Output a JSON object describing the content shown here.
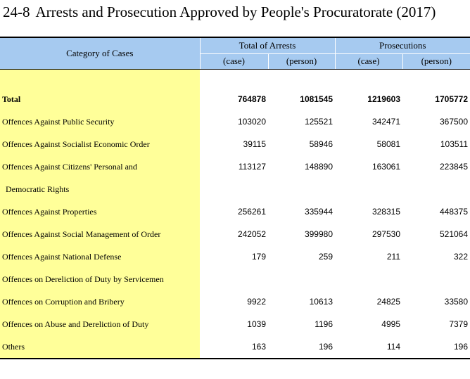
{
  "title": {
    "number": "24-8",
    "text": "Arrests and Prosecution Approved by People's Procuratorate (2017)"
  },
  "header": {
    "category": "Category of Cases",
    "groups": [
      "Total of Arrests",
      "Prosecutions"
    ],
    "units": [
      "(case)",
      "(person)",
      "(case)",
      "(person)"
    ]
  },
  "rows": [
    {
      "label": "Total",
      "values": [
        "764878",
        "1081545",
        "1219603",
        "1705772"
      ]
    },
    {
      "label": "Offences Against Public Security",
      "values": [
        "103020",
        "125521",
        "342471",
        "367500"
      ]
    },
    {
      "label": "Offences Against Socialist Economic Order",
      "values": [
        "39115",
        "58946",
        "58081",
        "103511"
      ]
    },
    {
      "label": "Offences Against Citizens' Personal and",
      "values": [
        "113127",
        "148890",
        "163061",
        "223845"
      ]
    },
    {
      "label": "Democratic Rights",
      "values": [
        "",
        "",
        "",
        ""
      ]
    },
    {
      "label": "Offences Against Properties",
      "values": [
        "256261",
        "335944",
        "328315",
        "448375"
      ]
    },
    {
      "label": "Offences Against Social Management of Order",
      "values": [
        "242052",
        "399980",
        "297530",
        "521064"
      ]
    },
    {
      "label": "Offences Against National Defense",
      "values": [
        "179",
        "259",
        "211",
        "322"
      ]
    },
    {
      "label": "Offences on Dereliction of Duty by Servicemen",
      "values": [
        "",
        "",
        "",
        ""
      ]
    },
    {
      "label": "Offences on Corruption and Bribery",
      "values": [
        "9922",
        "10613",
        "24825",
        "33580"
      ]
    },
    {
      "label": "Offences on Abuse and Dereliction of Duty",
      "values": [
        "1039",
        "1196",
        "4995",
        "7379"
      ]
    },
    {
      "label": "Others",
      "values": [
        "163",
        "196",
        "114",
        "196"
      ]
    }
  ]
}
